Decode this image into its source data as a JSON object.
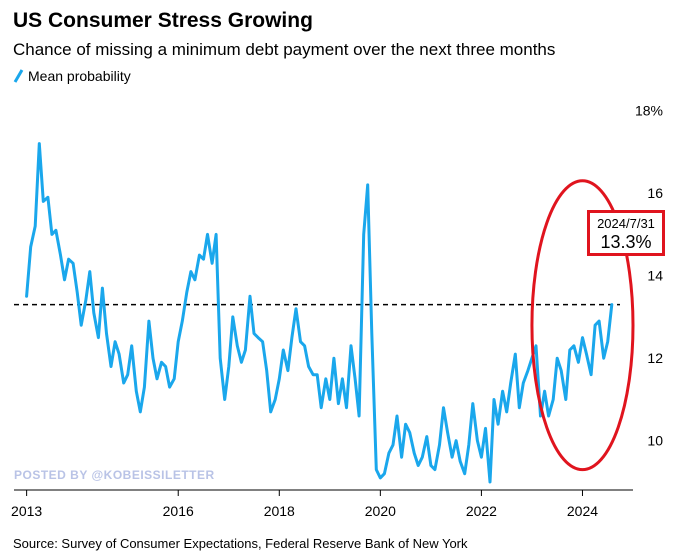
{
  "title": "US Consumer Stress Growing",
  "subtitle": "Chance of missing a minimum debt payment over the next three months",
  "source": "Source: Survey of Consumer Expectations, Federal Reserve Bank of New York",
  "watermark": "POSTED BY @KOBEISSILETTER",
  "callout": {
    "date": "2024/7/31",
    "value": "13.3%"
  },
  "colors": {
    "line": "#1aa7ec",
    "annotation": "#e0141e",
    "watermark": "#b9c3e6"
  },
  "chart_data": {
    "type": "line",
    "title": "US Consumer Stress Growing",
    "subtitle": "Chance of missing a minimum debt payment over the next three months",
    "xlabel": "",
    "ylabel": "",
    "x_ticks": [
      "2013",
      "2016",
      "2018",
      "2020",
      "2022",
      "2024"
    ],
    "x_tick_values": [
      2013,
      2016,
      2018,
      2020,
      2022,
      2024
    ],
    "y_ticks": [
      "10",
      "12",
      "14",
      "16",
      "18%"
    ],
    "y_tick_values": [
      10,
      12,
      14,
      16,
      18
    ],
    "xlim": [
      2012.75,
      2025.0
    ],
    "ylim": [
      9.0,
      18.5
    ],
    "y_axis_position": "right",
    "grid": false,
    "legend": {
      "entries": [
        "Mean probability"
      ],
      "position": "top-left"
    },
    "reference_line": {
      "y": 13.3,
      "style": "dashed"
    },
    "highlight": {
      "shape": "ellipse",
      "x_range": [
        2023.0,
        2025.0
      ],
      "y_range": [
        9.3,
        16.3
      ]
    },
    "series": [
      {
        "name": "Mean probability",
        "x": [
          2013.0,
          2013.08,
          2013.17,
          2013.25,
          2013.33,
          2013.42,
          2013.5,
          2013.58,
          2013.67,
          2013.75,
          2013.83,
          2013.92,
          2014.0,
          2014.08,
          2014.17,
          2014.25,
          2014.33,
          2014.42,
          2014.5,
          2014.58,
          2014.67,
          2014.75,
          2014.83,
          2014.92,
          2015.0,
          2015.08,
          2015.17,
          2015.25,
          2015.33,
          2015.42,
          2015.5,
          2015.58,
          2015.67,
          2015.75,
          2015.83,
          2015.92,
          2016.0,
          2016.08,
          2016.17,
          2016.25,
          2016.33,
          2016.42,
          2016.5,
          2016.58,
          2016.67,
          2016.75,
          2016.83,
          2016.92,
          2017.0,
          2017.08,
          2017.17,
          2017.25,
          2017.33,
          2017.42,
          2017.5,
          2017.58,
          2017.67,
          2017.75,
          2017.83,
          2017.92,
          2018.0,
          2018.08,
          2018.17,
          2018.25,
          2018.33,
          2018.42,
          2018.5,
          2018.58,
          2018.67,
          2018.75,
          2018.83,
          2018.92,
          2019.0,
          2019.08,
          2019.17,
          2019.25,
          2019.33,
          2019.42,
          2019.5,
          2019.58,
          2019.67,
          2019.75,
          2019.83,
          2019.92,
          2020.0,
          2020.08,
          2020.17,
          2020.25,
          2020.33,
          2020.42,
          2020.5,
          2020.58,
          2020.67,
          2020.75,
          2020.83,
          2020.92,
          2021.0,
          2021.08,
          2021.17,
          2021.25,
          2021.33,
          2021.42,
          2021.5,
          2021.58,
          2021.67,
          2021.75,
          2021.83,
          2021.92,
          2022.0,
          2022.08,
          2022.17,
          2022.25,
          2022.33,
          2022.42,
          2022.5,
          2022.58,
          2022.67,
          2022.75,
          2022.83,
          2022.92,
          2023.0,
          2023.08,
          2023.17,
          2023.25,
          2023.33,
          2023.42,
          2023.5,
          2023.58,
          2023.67,
          2023.75,
          2023.83,
          2023.92,
          2024.0,
          2024.08,
          2024.17,
          2024.25,
          2024.33,
          2024.42,
          2024.5,
          2024.58
        ],
        "values": [
          13.5,
          14.7,
          15.2,
          17.2,
          15.8,
          15.9,
          15.0,
          15.1,
          14.5,
          13.9,
          14.4,
          14.3,
          13.6,
          12.8,
          13.4,
          14.1,
          13.1,
          12.5,
          13.7,
          12.6,
          11.8,
          12.4,
          12.1,
          11.4,
          11.6,
          12.3,
          11.2,
          10.7,
          11.3,
          12.9,
          12.0,
          11.5,
          11.9,
          11.8,
          11.3,
          11.5,
          12.4,
          12.9,
          13.6,
          14.1,
          13.9,
          14.5,
          14.4,
          15.0,
          14.3,
          15.0,
          12.0,
          11.0,
          11.8,
          13.0,
          12.3,
          11.9,
          12.2,
          13.5,
          12.6,
          12.5,
          12.4,
          11.7,
          10.7,
          11.0,
          11.5,
          12.2,
          11.7,
          12.5,
          13.2,
          12.4,
          12.3,
          11.8,
          11.6,
          11.6,
          10.8,
          11.5,
          11.0,
          12.0,
          10.9,
          11.5,
          10.8,
          12.3,
          11.5,
          10.6,
          15.0,
          16.2,
          12.6,
          9.3,
          9.1,
          9.2,
          9.7,
          9.9,
          10.6,
          9.6,
          10.4,
          10.2,
          9.7,
          9.4,
          9.6,
          10.1,
          9.4,
          9.3,
          9.9,
          10.8,
          10.2,
          9.6,
          10.0,
          9.5,
          9.2,
          9.9,
          10.9,
          10.0,
          9.6,
          10.3,
          9.0,
          11.0,
          10.4,
          11.2,
          10.7,
          11.4,
          12.1,
          10.8,
          11.4,
          11.7,
          12.0,
          12.3,
          10.6,
          11.2,
          10.6,
          11.0,
          12.0,
          11.7,
          11.0,
          12.2,
          12.3,
          11.9,
          12.5,
          12.1,
          11.6,
          12.8,
          12.9,
          12.0,
          12.4,
          13.3
        ]
      }
    ]
  }
}
